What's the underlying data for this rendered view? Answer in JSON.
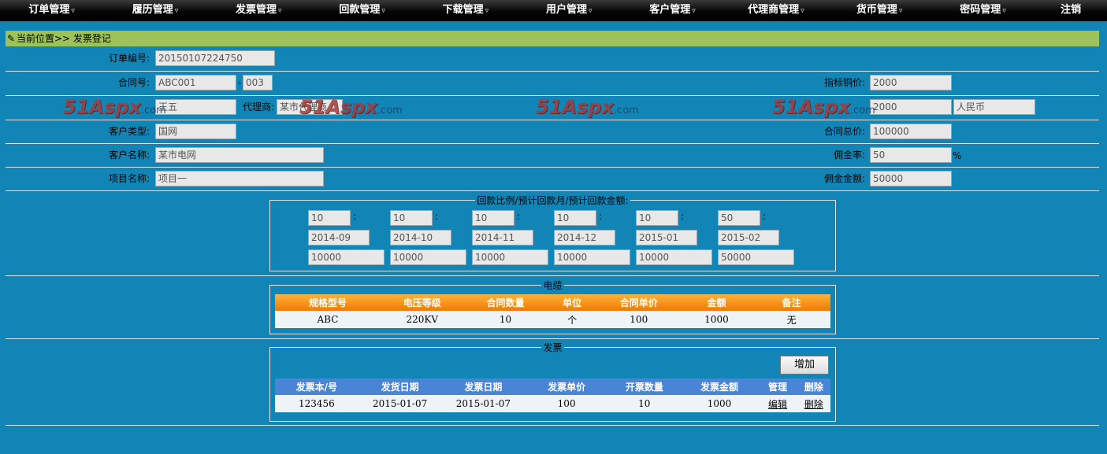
{
  "nav": {
    "items": [
      "订单管理",
      "履历管理",
      "发票管理",
      "回款管理",
      "下载管理",
      "用户管理",
      "客户管理",
      "代理商管理",
      "货币管理",
      "密码管理"
    ],
    "caret": "▿",
    "logout": "注销"
  },
  "breadcrumb": {
    "text": "当前位置>> 发票登记",
    "icon": "pencil-icon"
  },
  "form": {
    "order_no_label": "订单编号:",
    "order_no": "20150107224750",
    "contract_no_label": "合同号:",
    "contract_no": "ABC001",
    "contract_sep": "-",
    "contract_suffix": "003",
    "index_price_label": "指标铜价:",
    "index_price": "2000",
    "salesman_value": "王五",
    "agent_label": "代理商:",
    "agent_value": "某市代理商",
    "copper_price_value": "2000",
    "currency_value": "人民币",
    "customer_type_label": "客户类型:",
    "customer_type": "国网",
    "total_price_label": "合同总价:",
    "total_price": "100000",
    "customer_name_label": "客户名称:",
    "customer_name": "某市电网",
    "commission_rate_label": "佣金率:",
    "commission_rate": "50",
    "percent": "%",
    "project_name_label": "项目名称:",
    "project_name": "项目一",
    "commission_amount_label": "佣金金额:",
    "commission_amount": "50000"
  },
  "payment": {
    "legend": "回款比例/预计回款月/预计回款金额:",
    "ratio_sep": ":",
    "columns": [
      {
        "ratio": "10",
        "month": "2014-09",
        "amount": "10000"
      },
      {
        "ratio": "10",
        "month": "2014-10",
        "amount": "10000"
      },
      {
        "ratio": "10",
        "month": "2014-11",
        "amount": "10000"
      },
      {
        "ratio": "10",
        "month": "2014-12",
        "amount": "10000"
      },
      {
        "ratio": "10",
        "month": "2015-01",
        "amount": "10000"
      },
      {
        "ratio": "50",
        "month": "2015-02",
        "amount": "50000"
      }
    ]
  },
  "cable": {
    "legend": "电缆",
    "headers": [
      "规格型号",
      "电压等级",
      "合同数量",
      "单位",
      "合同单价",
      "金额",
      "备注"
    ],
    "rows": [
      [
        "ABC",
        "220KV",
        "10",
        "个",
        "100",
        "1000",
        "无"
      ]
    ]
  },
  "invoice": {
    "legend": "发票",
    "add_label": "增加",
    "headers": [
      "发票本/号",
      "发货日期",
      "发票日期",
      "发票单价",
      "开票数量",
      "发票金额",
      "管理",
      "删除"
    ],
    "rows": [
      [
        "123456",
        "2015-01-07",
        "2015-01-07",
        "100",
        "10",
        "1000",
        "编辑",
        "删除"
      ]
    ]
  },
  "watermark": {
    "brand": "51Aspx",
    "domain": ".com"
  }
}
